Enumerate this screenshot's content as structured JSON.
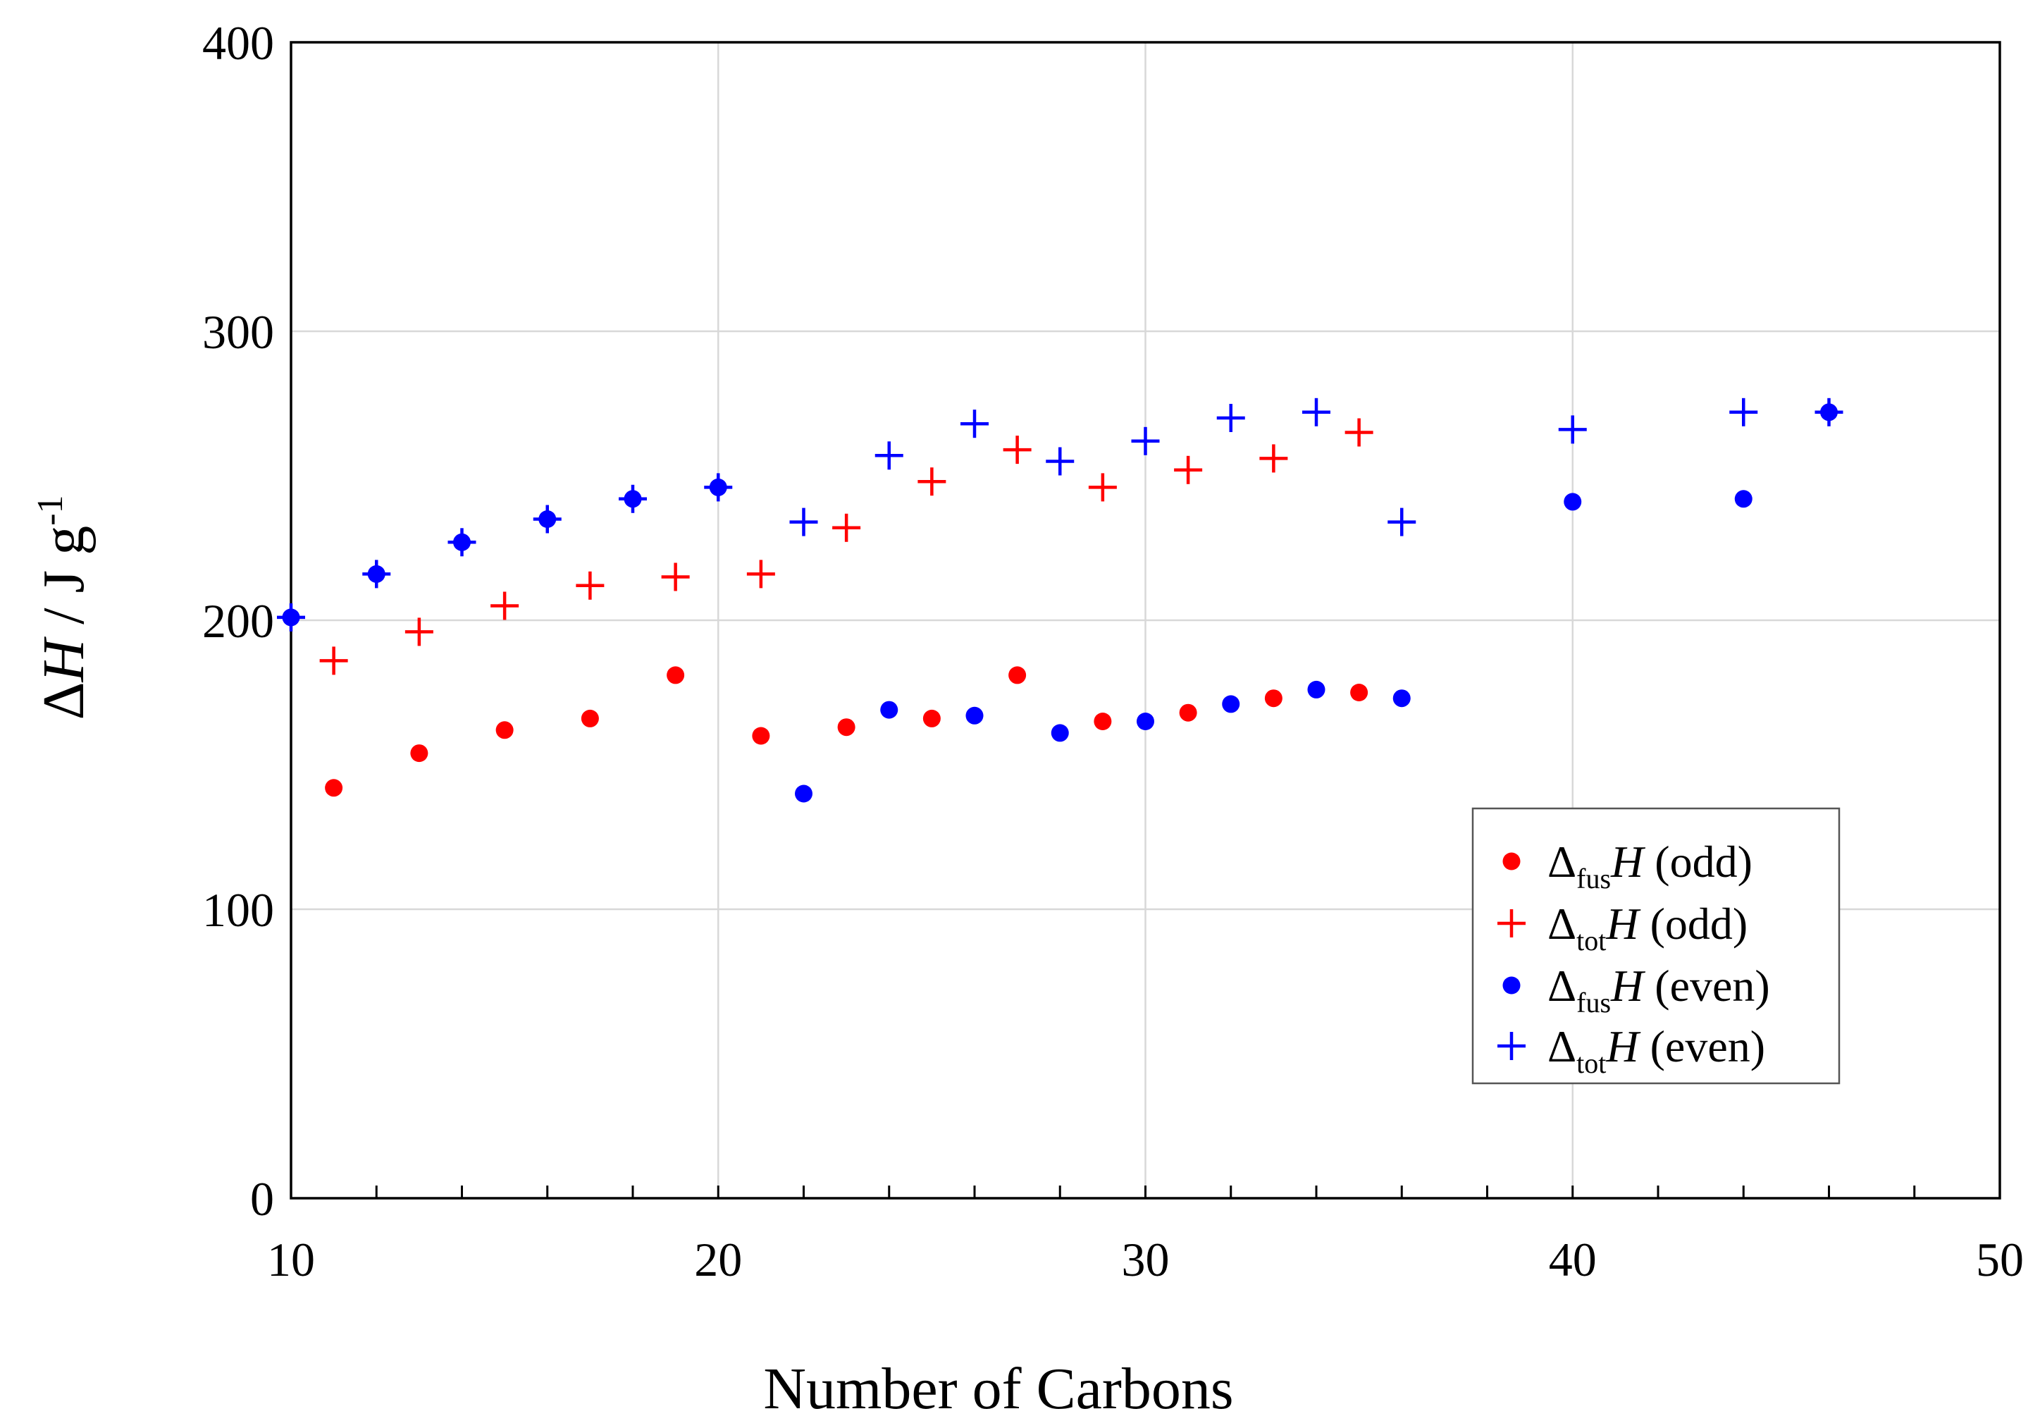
{
  "chart_data": {
    "type": "scatter",
    "title": "",
    "xlabel": "Number of Carbons",
    "ylabel": {
      "delta": "Δ",
      "var": "H",
      "unit": " / J g",
      "sup": "-1"
    },
    "xlim": [
      10,
      50
    ],
    "ylim": [
      0,
      400
    ],
    "xticks": [
      10,
      20,
      30,
      40,
      50
    ],
    "yticks": [
      0,
      100,
      200,
      300,
      400
    ],
    "grid": true,
    "legend_position": "lower-right",
    "series": [
      {
        "name": "Δfus H (odd)",
        "legend": {
          "delta": "Δ",
          "sub": "fus",
          "var": "H",
          "suffix": " (odd)"
        },
        "marker": "circle",
        "color": "#ff0000",
        "x": [
          11,
          13,
          15,
          17,
          19,
          21,
          23,
          25,
          27,
          29,
          31,
          33,
          35
        ],
        "y": [
          142,
          154,
          162,
          166,
          181,
          160,
          163,
          166,
          181,
          165,
          168,
          173,
          175
        ]
      },
      {
        "name": "Δtot H (odd)",
        "legend": {
          "delta": "Δ",
          "sub": "tot",
          "var": "H",
          "suffix": " (odd)"
        },
        "marker": "plus",
        "color": "#ff0000",
        "x": [
          11,
          13,
          15,
          17,
          19,
          21,
          23,
          25,
          27,
          29,
          31,
          33,
          35
        ],
        "y": [
          186,
          196,
          205,
          212,
          215,
          216,
          232,
          248,
          259,
          246,
          252,
          256,
          265
        ]
      },
      {
        "name": "Δfus H (even)",
        "legend": {
          "delta": "Δ",
          "sub": "fus",
          "var": "H",
          "suffix": " (even)"
        },
        "marker": "circle",
        "color": "#0000ff",
        "x": [
          10,
          12,
          14,
          16,
          18,
          20,
          22,
          24,
          26,
          28,
          30,
          32,
          34,
          36,
          40,
          44,
          46
        ],
        "y": [
          201,
          216,
          227,
          235,
          242,
          246,
          140,
          169,
          167,
          161,
          165,
          171,
          176,
          173,
          241,
          242,
          272
        ]
      },
      {
        "name": "Δtot H (even)",
        "legend": {
          "delta": "Δ",
          "sub": "tot",
          "var": "H",
          "suffix": " (even)"
        },
        "marker": "plus",
        "color": "#0000ff",
        "x": [
          10,
          12,
          14,
          16,
          18,
          20,
          22,
          24,
          26,
          28,
          30,
          32,
          34,
          36,
          40,
          44,
          46
        ],
        "y": [
          201,
          216,
          227,
          235,
          242,
          246,
          234,
          257,
          268,
          255,
          262,
          270,
          272,
          234,
          266,
          272,
          272
        ]
      }
    ]
  }
}
